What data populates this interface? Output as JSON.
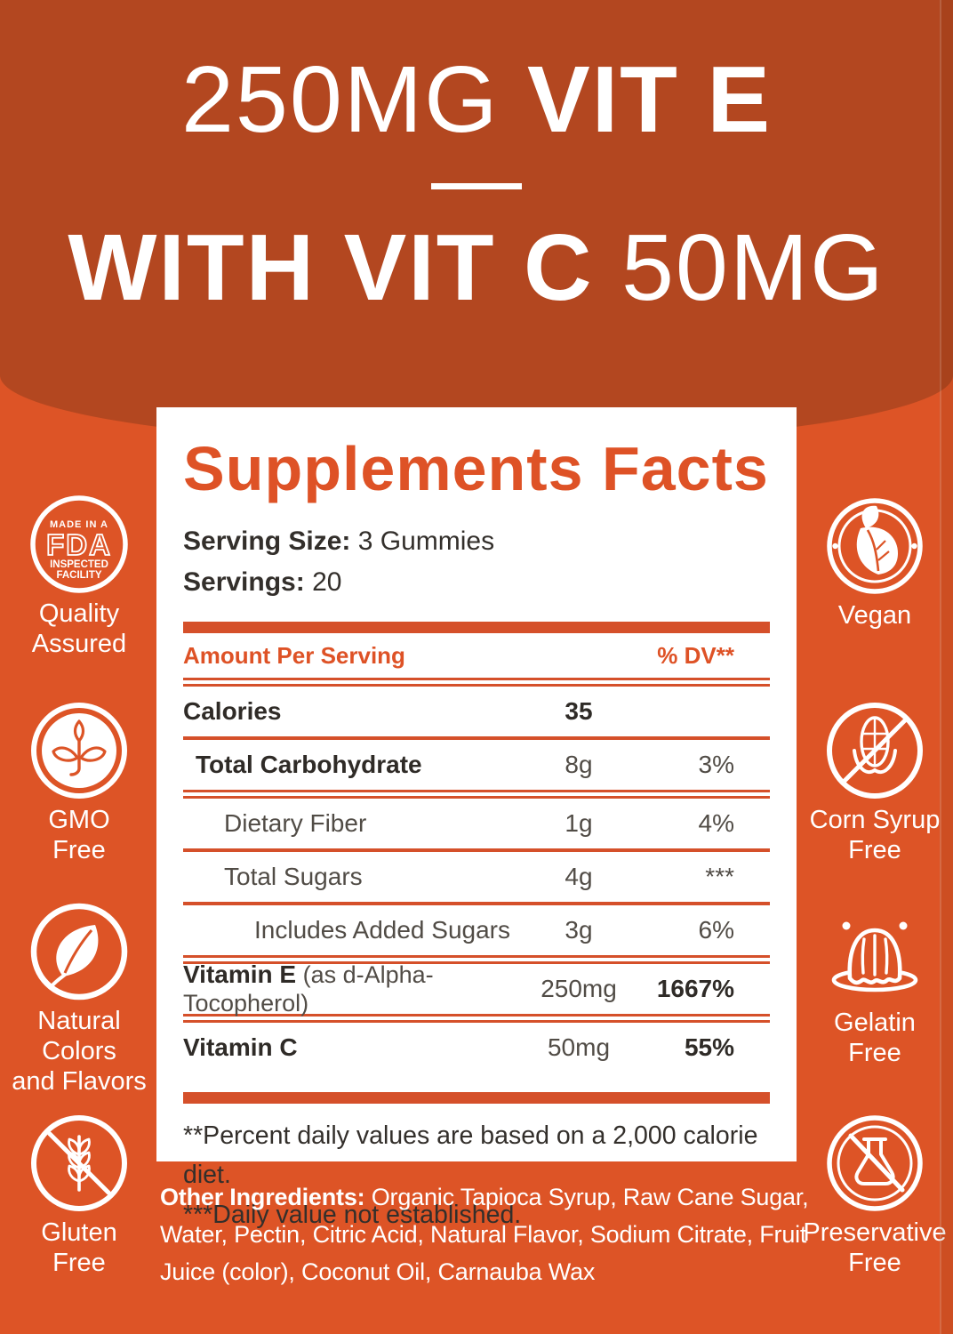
{
  "colors": {
    "background_orange": "#DD5426",
    "header_dark_orange": "#B34720",
    "accent_orange": "#DE5226",
    "rule_orange": "#D5502A",
    "panel_white": "#FFFFFF",
    "text_dark": "#2F2B27",
    "text_gray": "#514C46"
  },
  "header": {
    "line1_regular": "250MG",
    "line1_bold": "VIT E",
    "line2_bold": "WITH VIT C",
    "line2_regular": "50MG"
  },
  "panel": {
    "title": "Supplements Facts",
    "serving_size_label": "Serving Size:",
    "serving_size_value": "3 Gummies",
    "servings_label": "Servings:",
    "servings_value": "20",
    "columns": {
      "amount_header": "Amount Per Serving",
      "dv_header": "% DV**"
    },
    "rows": [
      {
        "label": "Calories",
        "note": "",
        "amount": "35",
        "dv": "",
        "indent": 0,
        "label_bold": true,
        "amount_bold": true,
        "dv_bold": false,
        "rule_after": "single"
      },
      {
        "label": "Total Carbohydrate",
        "note": "",
        "amount": "8g",
        "dv": "3%",
        "indent": 1,
        "label_bold": true,
        "amount_bold": false,
        "dv_bold": false,
        "rule_after": "double"
      },
      {
        "label": "Dietary Fiber",
        "note": "",
        "amount": "1g",
        "dv": "4%",
        "indent": 2,
        "label_bold": false,
        "amount_bold": false,
        "dv_bold": false,
        "rule_after": "single"
      },
      {
        "label": "Total Sugars",
        "note": "",
        "amount": "4g",
        "dv": "***",
        "indent": 2,
        "label_bold": false,
        "amount_bold": false,
        "dv_bold": false,
        "rule_after": "single"
      },
      {
        "label": "Includes Added Sugars",
        "note": "",
        "amount": "3g",
        "dv": "6%",
        "indent": 3,
        "label_bold": false,
        "amount_bold": false,
        "dv_bold": false,
        "rule_after": "double"
      },
      {
        "label": "Vitamin E",
        "note": "(as d-Alpha-Tocopherol)",
        "amount": "250mg",
        "dv": "1667%",
        "indent": 0,
        "label_bold": true,
        "amount_bold": false,
        "dv_bold": true,
        "rule_after": "double"
      },
      {
        "label": "Vitamin C",
        "note": "",
        "amount": "50mg",
        "dv": "55%",
        "indent": 0,
        "label_bold": true,
        "amount_bold": false,
        "dv_bold": true,
        "rule_after": "thick"
      }
    ],
    "footnotes": [
      "**Percent daily values are based on a 2,000 calorie diet.",
      "***Daily value not established."
    ]
  },
  "badges": {
    "left": [
      {
        "id": "badge-fda",
        "icon": "fda-badge-icon",
        "icon_text": [
          "MADE IN A",
          "FDA",
          "INSPECTED",
          "FACILITY"
        ],
        "label_lines": [
          "Quality",
          "Assured"
        ]
      },
      {
        "id": "badge-gmo-free",
        "icon": "gmo-free-icon",
        "label_lines": [
          "GMO",
          "Free"
        ]
      },
      {
        "id": "badge-natural",
        "icon": "natural-leaf-icon",
        "label_lines": [
          "Natural",
          "Colors",
          "and Flavors"
        ]
      },
      {
        "id": "badge-gluten-free",
        "icon": "gluten-free-icon",
        "label_lines": [
          "Gluten",
          "Free"
        ]
      }
    ],
    "right": [
      {
        "id": "badge-vegan",
        "icon": "vegan-leaf-icon",
        "label_lines": [
          "Vegan"
        ]
      },
      {
        "id": "badge-corn-syrup-free",
        "icon": "corn-syrup-free-icon",
        "label_lines": [
          "Corn Syrup",
          "Free"
        ]
      },
      {
        "id": "badge-gelatin-free",
        "icon": "gelatin-free-icon",
        "label_lines": [
          "Gelatin",
          "Free"
        ]
      },
      {
        "id": "badge-preservative-free",
        "icon": "preservative-free-icon",
        "label_lines": [
          "Preservative",
          "Free"
        ]
      }
    ]
  },
  "other_ingredients": {
    "label": "Other Ingredients:",
    "text": "Organic Tapioca Syrup, Raw Cane Sugar, Water, Pectin, Citric Acid, Natural Flavor, Sodium Citrate, Fruit Juice (color), Coconut Oil, Carnauba Wax"
  }
}
